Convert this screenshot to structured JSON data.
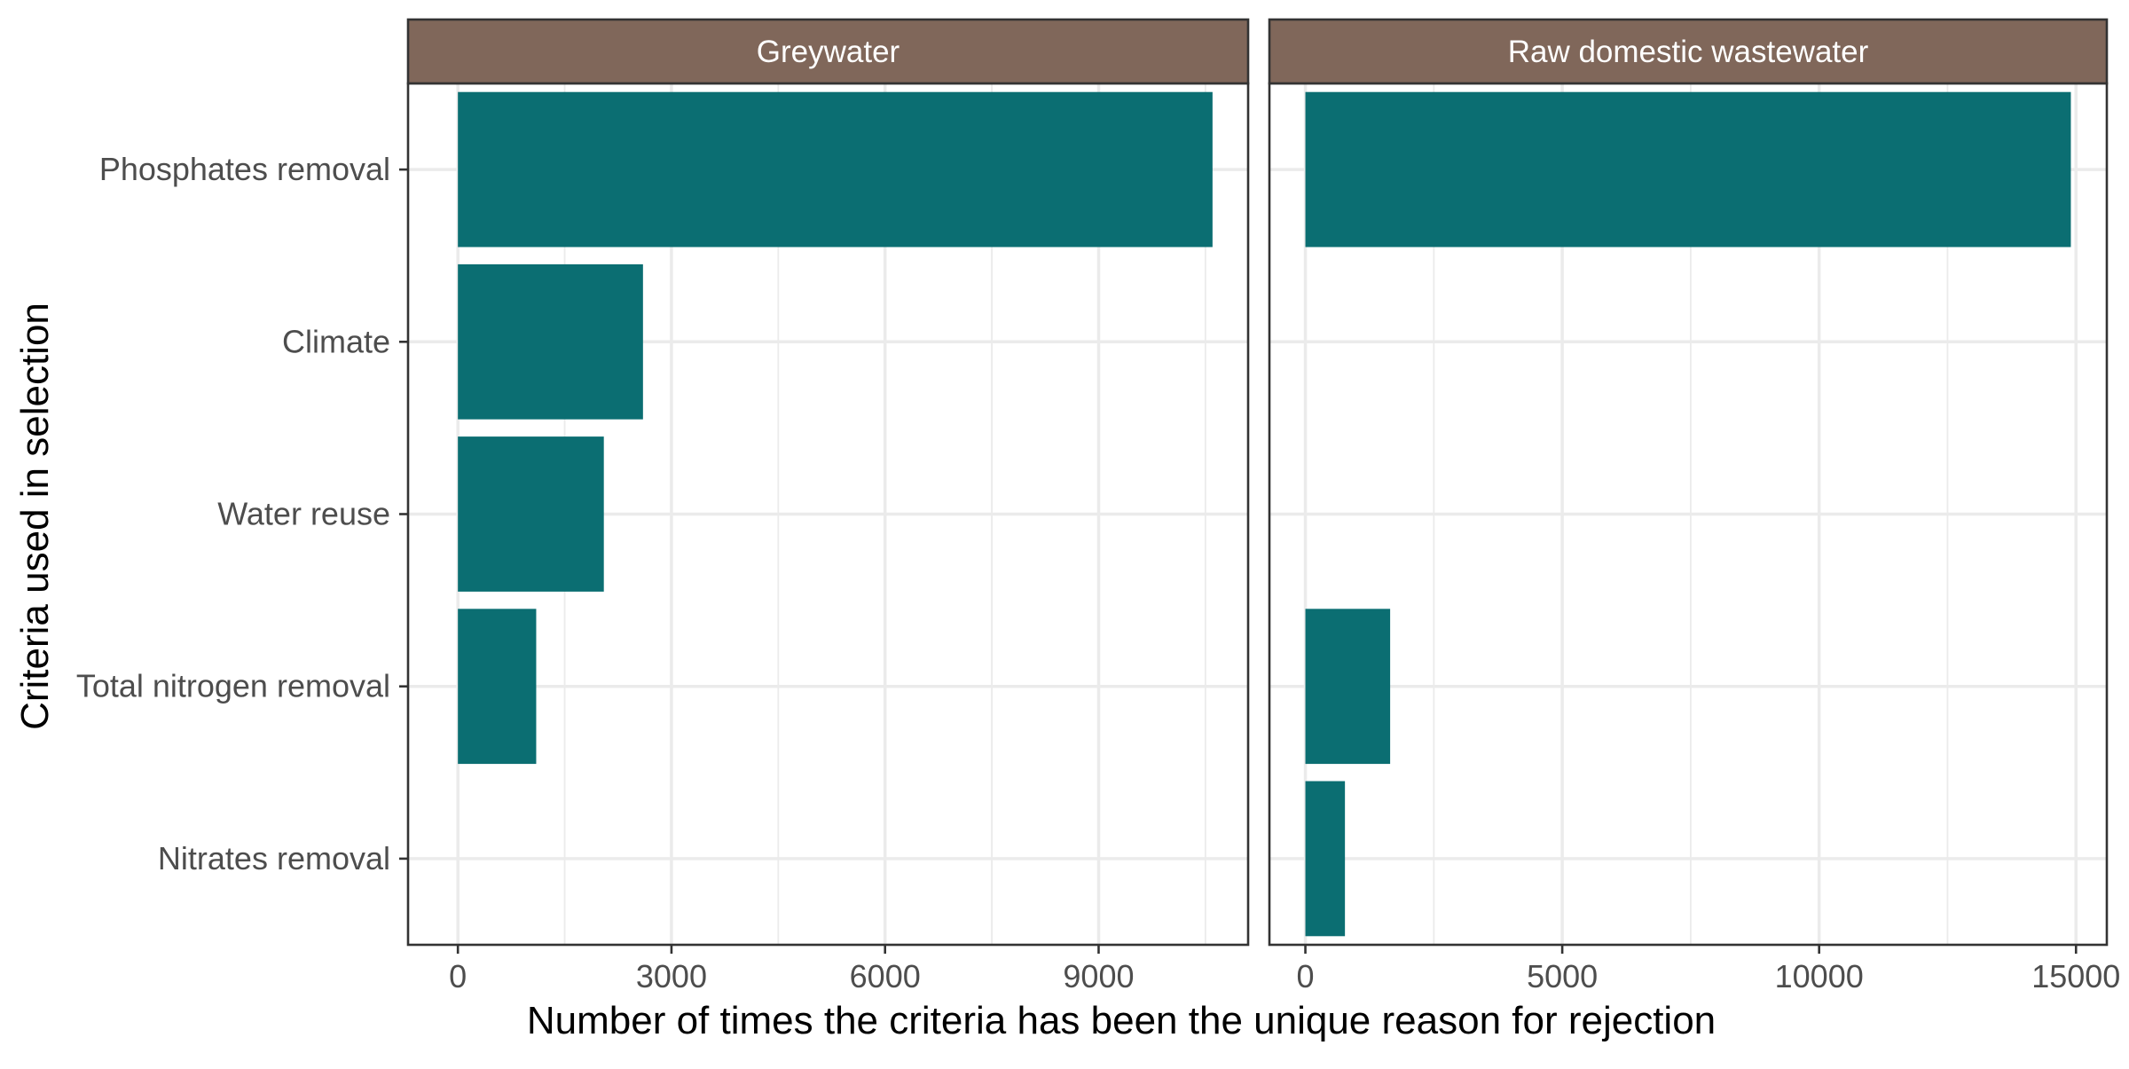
{
  "colors": {
    "bar": "#0B6E72",
    "strip_background": "#80675A",
    "strip_text": "#FFFFFF",
    "grid": "#EBEBEB",
    "panel_border": "#333333",
    "tick_text": "#4D4D4D"
  },
  "chart_data": {
    "type": "bar",
    "orientation": "horizontal",
    "categories": [
      "Phosphates removal",
      "Climate",
      "Water reuse",
      "Total nitrogen removal",
      "Nitrates removal"
    ],
    "xlabel": "Number of times the criteria has been the unique reason for rejection",
    "ylabel": "Criteria used in selection",
    "grid": true,
    "legend": "none",
    "panels": [
      {
        "name": "Greywater",
        "xlim": [
          -700,
          11100
        ],
        "ticks": [
          0,
          3000,
          6000,
          9000
        ],
        "tick_labels": [
          "0",
          "3000",
          "6000",
          "9000"
        ],
        "values": [
          10600,
          2600,
          2050,
          1100,
          0
        ]
      },
      {
        "name": "Raw domestic wastewater",
        "xlim": [
          -700,
          15600
        ],
        "ticks": [
          0,
          5000,
          10000,
          15000
        ],
        "tick_labels": [
          "0",
          "5000",
          "10000",
          "15000"
        ],
        "values": [
          14900,
          0,
          0,
          1650,
          770
        ]
      }
    ]
  }
}
